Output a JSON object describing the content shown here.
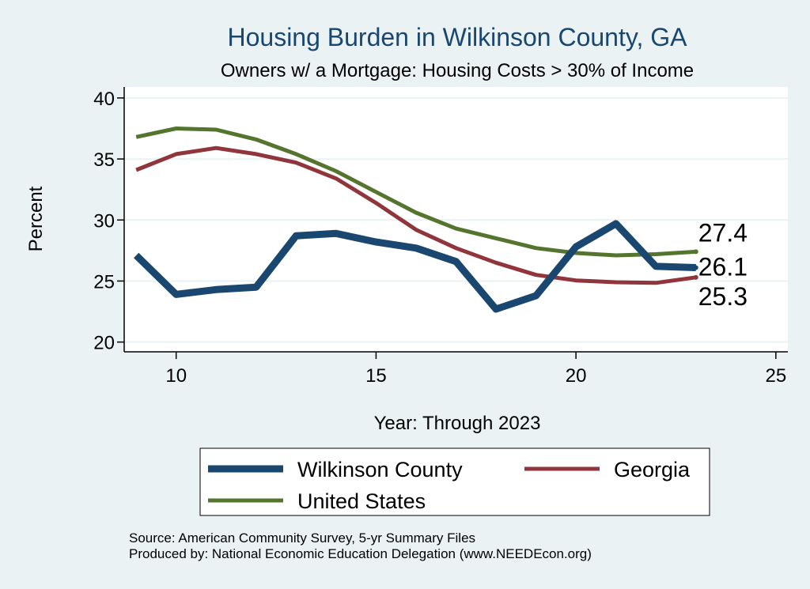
{
  "chart_data": {
    "type": "line",
    "title": "Housing Burden in Wilkinson County, GA",
    "subtitle": "Owners w/ a Mortgage: Housing Costs > 30% of Income",
    "xlabel": "Year: Through 2023",
    "ylabel": "Percent",
    "xlim": [
      8.7,
      25.3
    ],
    "ylim": [
      19.2,
      40.9
    ],
    "xticks": [
      10,
      15,
      20,
      25
    ],
    "yticks": [
      20,
      25,
      30,
      35,
      40
    ],
    "grid": true,
    "x": [
      9,
      10,
      11,
      12,
      13,
      14,
      15,
      16,
      17,
      18,
      19,
      20,
      21,
      22,
      23
    ],
    "series": [
      {
        "name": "Wilkinson County",
        "color": "#1a476f",
        "values": [
          27.1,
          23.9,
          24.3,
          24.5,
          28.7,
          28.9,
          28.2,
          27.7,
          26.6,
          22.7,
          23.8,
          27.8,
          29.7,
          26.2,
          26.1
        ],
        "end_label": "26.1"
      },
      {
        "name": "Georgia",
        "color": "#90353b",
        "values": [
          34.1,
          35.4,
          35.9,
          35.4,
          34.7,
          33.4,
          31.4,
          29.2,
          27.7,
          26.5,
          25.5,
          25.05,
          24.9,
          24.85,
          25.3
        ],
        "end_label": "25.3"
      },
      {
        "name": "United States",
        "color": "#55752f",
        "values": [
          36.8,
          37.5,
          37.4,
          36.6,
          35.4,
          34.0,
          32.3,
          30.6,
          29.3,
          28.5,
          27.7,
          27.3,
          27.1,
          27.2,
          27.4
        ],
        "end_label": "27.4"
      }
    ],
    "legend": {
      "position": "bottom",
      "items": [
        "Wilkinson County",
        "Georgia",
        "United States"
      ]
    }
  },
  "notes": {
    "source": "Source: American Community Survey, 5-yr Summary Files",
    "produced_by": "Produced by: National Economic Education Delegation (www.NEEDEcon.org)"
  }
}
